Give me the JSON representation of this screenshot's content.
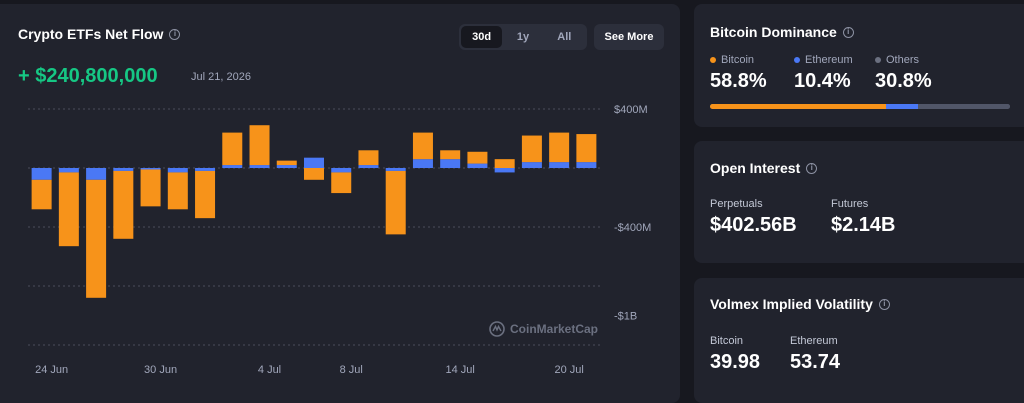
{
  "etf": {
    "title": "Crypto ETFs Net Flow",
    "ranges": [
      "30d",
      "1y",
      "All"
    ],
    "active_range": "30d",
    "see_more": "See More",
    "net_flow_value": "+ $240,800,000",
    "net_flow_date": "Jul 21, 2026",
    "watermark": "CoinMarketCap",
    "colors": {
      "bitcoin": "#f7931a",
      "ethereum": "#4a78f5",
      "positive": "#16c784"
    }
  },
  "chart_data": {
    "type": "bar",
    "stacked": true,
    "y_tick_labels": [
      "$400M",
      "-$400M",
      "-$1B"
    ],
    "x_tick_labels": [
      "24 Jun",
      "30 Jun",
      "4 Jul",
      "8 Jul",
      "14 Jul",
      "20 Jul"
    ],
    "ylim": [
      -1200,
      400
    ],
    "grid": true,
    "series": [
      {
        "name": "Bitcoin",
        "color": "#f7931a",
        "values": [
          -200,
          -500,
          -800,
          -460,
          -250,
          -250,
          -320,
          220,
          270,
          30,
          -80,
          -140,
          100,
          -430,
          180,
          60,
          80,
          60,
          180,
          200,
          190
        ]
      },
      {
        "name": "Ethereum",
        "color": "#4a78f5",
        "values": [
          -80,
          -30,
          -80,
          -20,
          -10,
          -30,
          -20,
          20,
          20,
          20,
          70,
          -30,
          20,
          -20,
          60,
          60,
          30,
          -30,
          40,
          40,
          40
        ]
      }
    ]
  },
  "dominance": {
    "title": "Bitcoin Dominance",
    "items": [
      {
        "label": "Bitcoin",
        "value": "58.8%",
        "share": 58.8,
        "color": "#f7931a"
      },
      {
        "label": "Ethereum",
        "value": "10.4%",
        "share": 10.4,
        "color": "#4a78f5"
      },
      {
        "label": "Others",
        "value": "30.8%",
        "share": 30.8,
        "color": "#515668"
      }
    ]
  },
  "open_interest": {
    "title": "Open Interest",
    "perpetuals_label": "Perpetuals",
    "perpetuals_value": "$402.56B",
    "futures_label": "Futures",
    "futures_value": "$2.14B"
  },
  "volatility": {
    "title": "Volmex Implied Volatility",
    "bitcoin_label": "Bitcoin",
    "bitcoin_value": "39.98",
    "ethereum_label": "Ethereum",
    "ethereum_value": "53.74"
  }
}
